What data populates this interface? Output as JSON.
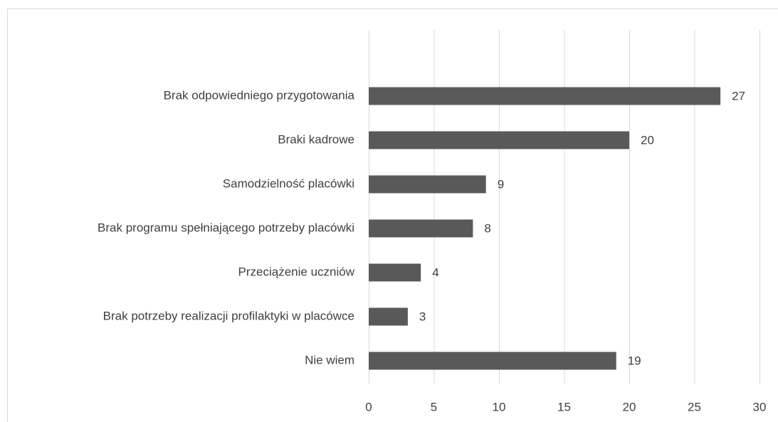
{
  "chart_data": {
    "type": "bar",
    "orientation": "horizontal",
    "categories": [
      "Brak odpowiedniego przygotowania",
      "Braki kadrowe",
      "Samodzielność placówki",
      "Brak programu spełniającego potrzeby placówki",
      "Przeciążenie uczniów",
      "Brak potrzeby realizacji profilaktyki w placówce",
      "Nie wiem"
    ],
    "values": [
      27,
      20,
      9,
      8,
      4,
      3,
      19
    ],
    "color": "#595959",
    "xlim": [
      0,
      30
    ],
    "xticks": [
      0,
      5,
      10,
      15,
      20,
      25,
      30
    ],
    "grid": true,
    "data_labels": true
  }
}
